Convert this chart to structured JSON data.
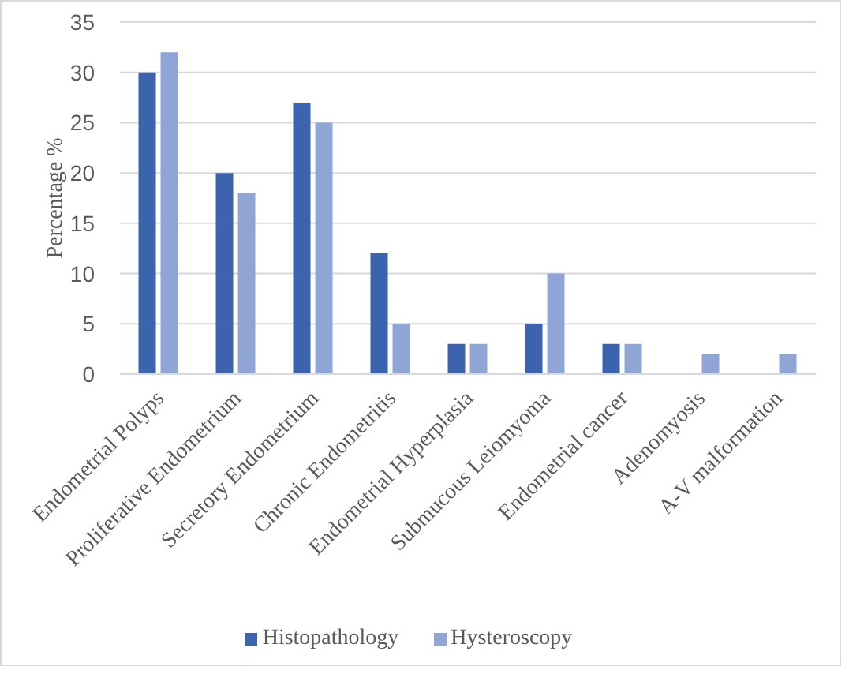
{
  "chart_data": {
    "type": "bar",
    "ylabel": "Percentage %",
    "categories": [
      "Endometrial Polyps",
      "Proliferative Endometrium",
      "Secretory Endometrium",
      "Chronic Endometritis",
      "Endometrial Hyperplasia",
      "Submucous Leiomyoma",
      "Endometrial cancer",
      "Adenomyosis",
      "A-V malformation"
    ],
    "series": [
      {
        "name": "Histopathology",
        "color": "#3c64ae",
        "values": [
          30,
          20,
          27,
          12,
          3,
          5,
          3,
          0,
          0
        ]
      },
      {
        "name": "Hysteroscopy",
        "color": "#8fa5d6",
        "values": [
          32,
          18,
          25,
          5,
          3,
          10,
          3,
          2,
          2
        ]
      }
    ],
    "ylim": [
      0,
      35
    ],
    "yticks": [
      0,
      5,
      10,
      15,
      20,
      25,
      30,
      35
    ],
    "grid": "y",
    "legend": "bottom"
  }
}
